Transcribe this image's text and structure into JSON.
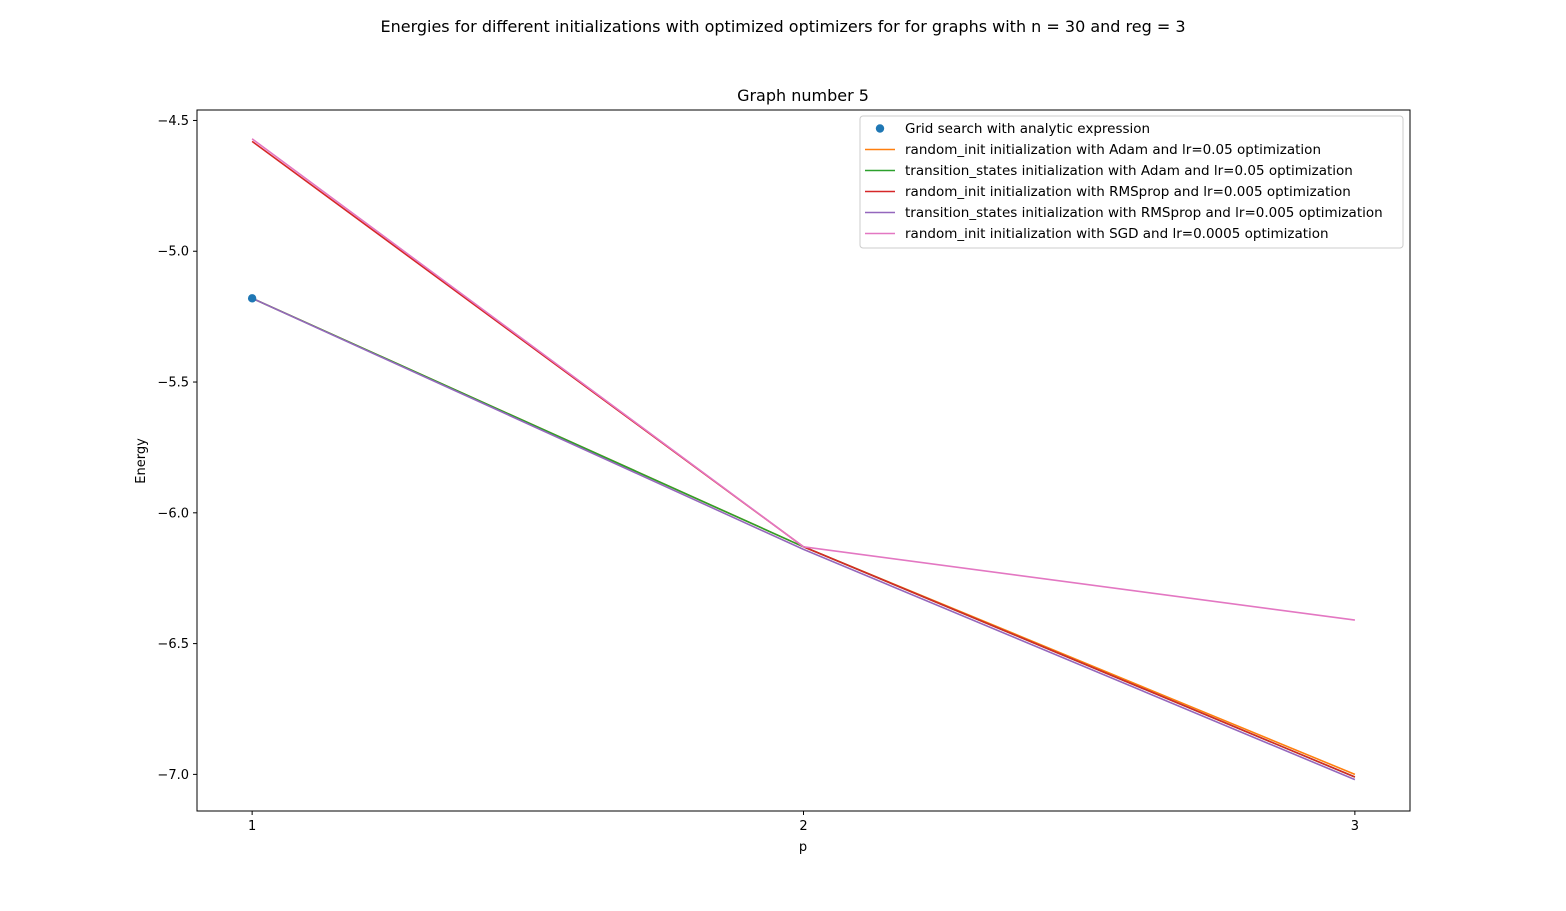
{
  "figure": {
    "suptitle": "Energies for different initializations with optimized optimizers for for graphs with n = 30 and reg = 3"
  },
  "chart_data": {
    "type": "line",
    "title": "Graph number 5",
    "xlabel": "p",
    "ylabel": "Energy",
    "xlim": [
      0.9,
      3.1
    ],
    "ylim": [
      -7.14,
      -4.46
    ],
    "xticks": [
      1,
      2,
      3
    ],
    "xtick_labels": [
      "1",
      "2",
      "3"
    ],
    "yticks": [
      -4.5,
      -5.0,
      -5.5,
      -6.0,
      -6.5,
      -7.0
    ],
    "ytick_labels": [
      "−4.5",
      "−5.0",
      "−5.5",
      "−6.0",
      "−6.5",
      "−7.0"
    ],
    "grid": false,
    "legend_position": "top-right",
    "scatter": {
      "name": "Grid search with analytic expression",
      "color": "#1f77b4",
      "points": [
        {
          "x": 1,
          "y": -5.18
        }
      ]
    },
    "series": [
      {
        "name": "random_init initialization with Adam and lr=0.05 optimization",
        "color": "#ff7f0e",
        "x": [
          1,
          2,
          3
        ],
        "y": [
          -5.18,
          -6.13,
          -7.0
        ]
      },
      {
        "name": "transition_states initialization with Adam and lr=0.05 optimization",
        "color": "#2ca02c",
        "x": [
          1,
          2,
          3
        ],
        "y": [
          -5.18,
          -6.13,
          -7.01
        ]
      },
      {
        "name": "random_init initialization with RMSprop and lr=0.005 optimization",
        "color": "#d62728",
        "x": [
          1,
          2,
          3
        ],
        "y": [
          -4.58,
          -6.13,
          -7.01
        ]
      },
      {
        "name": "transition_states initialization with RMSprop and lr=0.005 optimization",
        "color": "#9467bd",
        "x": [
          1,
          2,
          3
        ],
        "y": [
          -5.18,
          -6.14,
          -7.02
        ]
      },
      {
        "name": "random_init initialization with SGD and lr=0.0005 optimization",
        "color": "#e377c2",
        "x": [
          1,
          2,
          3
        ],
        "y": [
          -4.57,
          -6.13,
          -6.41
        ]
      }
    ]
  }
}
